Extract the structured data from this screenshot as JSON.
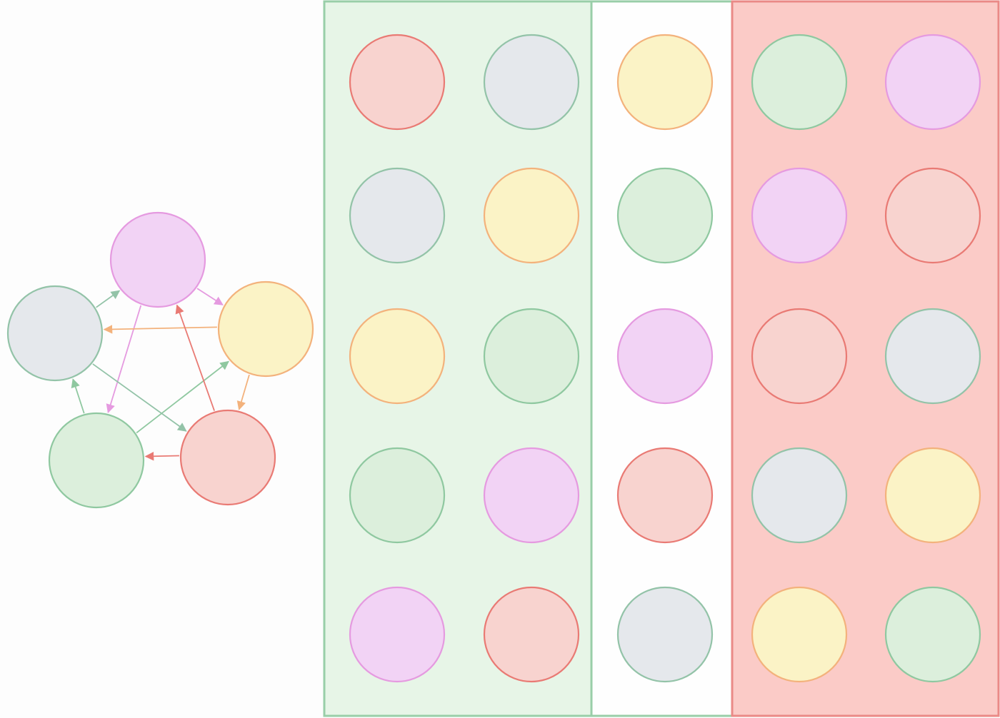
{
  "colors": {
    "rock": {
      "fill": "#f8d3cf",
      "stroke": "#e97a74"
    },
    "paper": {
      "fill": "#fbf3c6",
      "stroke": "#f3b27c"
    },
    "scissors": {
      "fill": "#f2d3f5",
      "stroke": "#e59ae0"
    },
    "lizard": {
      "fill": "#dcefdc",
      "stroke": "#8fc8a0"
    },
    "spock": {
      "fill": "#e5e8ec",
      "stroke": "#93c3a8"
    },
    "win_panel_fill": "#e7f5e7",
    "win_panel_stroke": "#99cea8",
    "draw_panel_fill": "#fefefe",
    "draw_panel_stroke": "#99cea8",
    "lose_panel_fill": "#fbcbc7",
    "lose_panel_stroke": "#ea8a87"
  },
  "gestures": [
    {
      "id": "scissors",
      "icon": "scissors-hand-icon"
    },
    {
      "id": "paper",
      "icon": "paper-hand-icon"
    },
    {
      "id": "rock",
      "icon": "rock-fist-icon"
    },
    {
      "id": "lizard",
      "icon": "lizard-hand-icon"
    },
    {
      "id": "spock",
      "icon": "spock-hand-icon"
    }
  ],
  "relations": [
    {
      "winner": "scissors",
      "loser": "paper"
    },
    {
      "winner": "paper",
      "loser": "rock"
    },
    {
      "winner": "rock",
      "loser": "lizard"
    },
    {
      "winner": "lizard",
      "loser": "spock"
    },
    {
      "winner": "spock",
      "loser": "scissors"
    },
    {
      "winner": "scissors",
      "loser": "lizard"
    },
    {
      "winner": "lizard",
      "loser": "paper"
    },
    {
      "winner": "paper",
      "loser": "spock"
    },
    {
      "winner": "spock",
      "loser": "rock"
    },
    {
      "winner": "rock",
      "loser": "scissors"
    }
  ],
  "win_pairs": [
    [
      "rock",
      "spock"
    ],
    [
      "spock",
      "paper"
    ],
    [
      "paper",
      "lizard"
    ],
    [
      "lizard",
      "scissors"
    ],
    [
      "scissors",
      "rock"
    ]
  ],
  "draws": [
    "paper",
    "lizard",
    "scissors",
    "rock",
    "spock"
  ],
  "lose_pairs": [
    [
      "lizard",
      "scissors"
    ],
    [
      "scissors",
      "rock"
    ],
    [
      "rock",
      "spock"
    ],
    [
      "spock",
      "paper"
    ],
    [
      "paper",
      "lizard"
    ]
  ]
}
